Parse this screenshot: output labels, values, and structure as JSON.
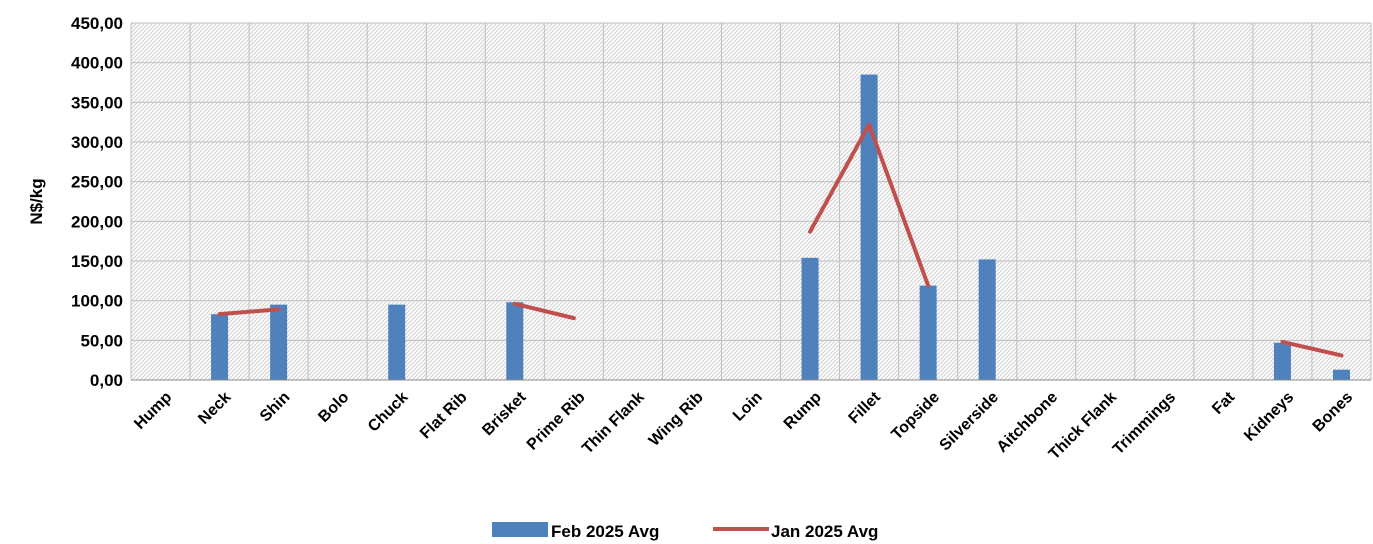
{
  "chart_data": {
    "type": "bar",
    "title": "",
    "xlabel": "",
    "ylabel": "N$/kg",
    "ylim": [
      0,
      450
    ],
    "y_ticks": [
      "0,00",
      "50,00",
      "100,00",
      "150,00",
      "200,00",
      "250,00",
      "300,00",
      "350,00",
      "400,00",
      "450,00"
    ],
    "grid": true,
    "legend_position": "bottom",
    "categories": [
      "Hump",
      "Neck",
      "Shin",
      "Bolo",
      "Chuck",
      "Flat Rib",
      "Brisket",
      "Prime Rib",
      "Thin Flank",
      "Wing Rib",
      "Loin",
      "Rump",
      "Fillet",
      "Topside",
      "Silverside",
      "Aitchbone",
      "Thick Flank",
      "Trimmings",
      "Fat",
      "Kidneys",
      "Bones"
    ],
    "series": [
      {
        "name": "Feb 2025 Avg",
        "type": "bar",
        "color": "#4F81BD",
        "values": [
          null,
          83,
          95,
          null,
          95,
          null,
          98,
          null,
          null,
          null,
          null,
          154,
          385,
          119,
          152,
          null,
          null,
          null,
          null,
          47,
          13
        ]
      },
      {
        "name": "Jan 2025 Avg",
        "type": "line",
        "color": "#C0504D",
        "values": [
          null,
          83,
          89,
          null,
          null,
          null,
          96,
          78,
          null,
          null,
          null,
          187,
          322,
          119,
          null,
          null,
          null,
          null,
          null,
          48,
          31
        ]
      }
    ]
  }
}
